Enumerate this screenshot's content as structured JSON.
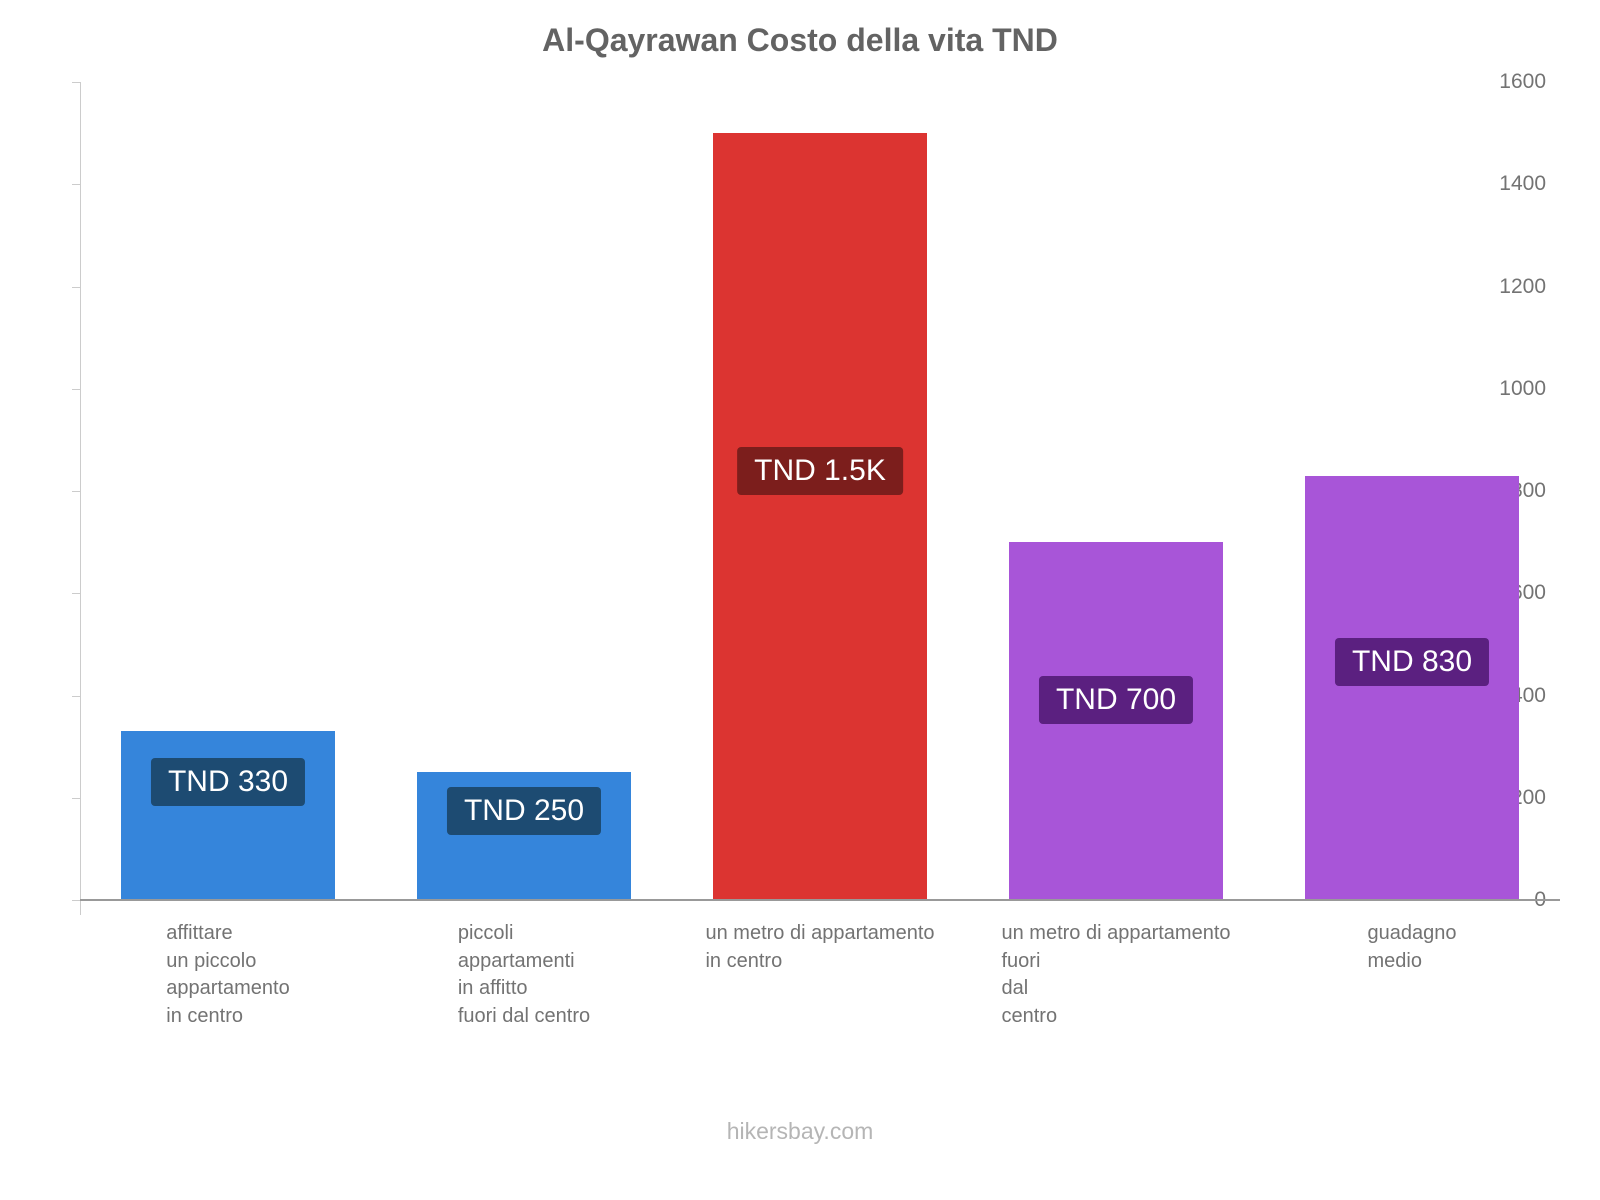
{
  "chart_data": {
    "type": "bar",
    "title": "Al-Qayrawan Costo della vita TND",
    "currency": "TND",
    "ylim": [
      0,
      1600
    ],
    "yticks": [
      0,
      200,
      400,
      600,
      800,
      1000,
      1200,
      1400,
      1600
    ],
    "grid": false,
    "legend": "none",
    "categories": [
      "affittare un piccolo appartamento in centro",
      "piccoli appartamenti in affitto fuori dal centro",
      "un metro di appartamento in centro",
      "un metro di appartamento fuori dal centro",
      "guadagno medio"
    ],
    "category_lines": [
      [
        "affittare",
        "un piccolo",
        "appartamento",
        "in centro"
      ],
      [
        "piccoli",
        "appartamenti",
        "in affitto",
        "fuori dal centro"
      ],
      [
        "un metro di appartamento",
        "in centro"
      ],
      [
        "un metro di appartamento",
        "fuori",
        "dal",
        "centro"
      ],
      [
        "guadagno",
        "medio"
      ]
    ],
    "values": [
      330,
      250,
      1500,
      700,
      830
    ],
    "value_labels": [
      "TND 330",
      "TND 250",
      "TND 1.5K",
      "TND 700",
      "TND 830"
    ],
    "bar_colors": [
      "#3585db",
      "#3585db",
      "#dc3431",
      "#a855d8",
      "#a855d8"
    ],
    "label_bg_colors": [
      "#1d4b72",
      "#1d4b72",
      "#7c1e1c",
      "#5b2080",
      "#5b2080"
    ]
  },
  "footer": {
    "watermark": "hikersbay.com"
  }
}
